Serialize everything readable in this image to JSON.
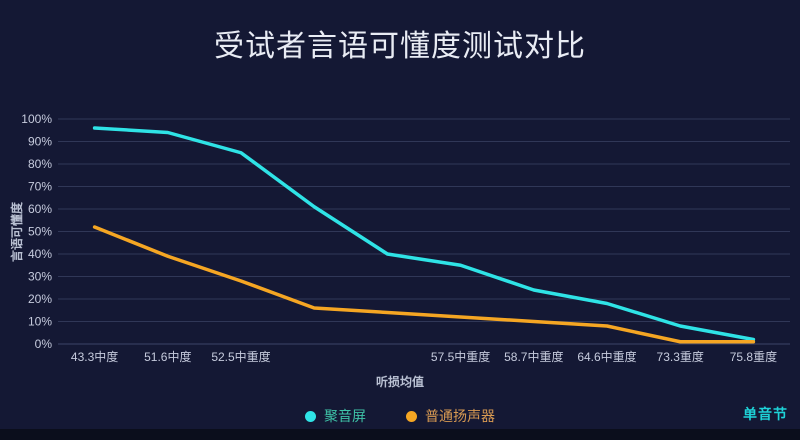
{
  "page": {
    "background": "#141834",
    "bottom_bar_color": "#0b0e1c"
  },
  "chart_data": {
    "type": "line",
    "title": "受试者言语可懂度测试对比",
    "xlabel": "听损均值",
    "ylabel": "言语可懂度",
    "categories": [
      "43.3中度",
      "51.6中度",
      "52.5中重度",
      "",
      "",
      "57.5中重度",
      "58.7中重度",
      "64.6中重度",
      "73.3重度",
      "75.8重度"
    ],
    "series": [
      {
        "name": "聚音屏",
        "color": "#2fe3e6",
        "legend_text_color": "#3fc3a8",
        "values": [
          96,
          94,
          85,
          61,
          40,
          35,
          24,
          18,
          8,
          2
        ]
      },
      {
        "name": "普通扬声器",
        "color": "#f5a623",
        "legend_text_color": "#d89a52",
        "values": [
          52,
          39,
          28,
          16,
          14,
          12,
          10,
          8,
          1,
          1
        ]
      }
    ],
    "ylim": [
      0,
      100
    ],
    "y_tick_labels": [
      "0%",
      "10%",
      "20%",
      "30%",
      "40%",
      "50%",
      "60%",
      "70%",
      "80%",
      "90%",
      "100%"
    ],
    "grid": true,
    "legend_position": "bottom",
    "colors": {
      "grid": "#303757",
      "axis_line": "#3c4468",
      "axis_label": "#c6cbdd",
      "axis_name": "#b9c0d2",
      "title": "#e9ecf4"
    }
  },
  "footnote": {
    "label": "单音节",
    "color": "#1ed3d8"
  }
}
